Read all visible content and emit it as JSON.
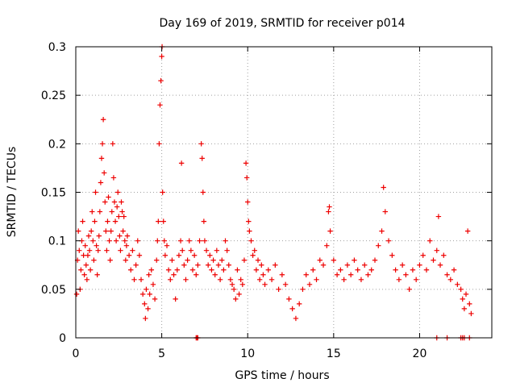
{
  "chart_data": {
    "type": "scatter",
    "title": "Day 169 of 2019, SRMTID for receiver p014",
    "xlabel": "GPS time / hours",
    "ylabel": "SRMTID / TECUs",
    "xlim": [
      0,
      24.2
    ],
    "ylim": [
      0,
      0.3
    ],
    "x_ticks": [
      0,
      5,
      10,
      15,
      20
    ],
    "y_ticks": [
      0,
      0.05,
      0.1,
      0.15,
      0.2,
      0.25,
      0.3
    ],
    "x_tick_labels": [
      "0",
      "5",
      "10",
      "15",
      "20"
    ],
    "y_tick_labels": [
      "0",
      "0.05",
      "0.1",
      "0.15",
      "0.2",
      "0.25",
      "0.3"
    ],
    "grid": true,
    "legend": "none",
    "marker": "plus",
    "series": [
      {
        "name": "SRMTID",
        "color": "#ee0000",
        "points": [
          [
            0.05,
            0.045
          ],
          [
            0.1,
            0.08
          ],
          [
            0.15,
            0.11
          ],
          [
            0.2,
            0.09
          ],
          [
            0.25,
            0.05
          ],
          [
            0.3,
            0.07
          ],
          [
            0.35,
            0.1
          ],
          [
            0.4,
            0.12
          ],
          [
            0.45,
            0.085
          ],
          [
            0.5,
            0.065
          ],
          [
            0.55,
            0.095
          ],
          [
            0.6,
            0.075
          ],
          [
            0.65,
            0.06
          ],
          [
            0.7,
            0.085
          ],
          [
            0.75,
            0.105
          ],
          [
            0.8,
            0.09
          ],
          [
            0.85,
            0.07
          ],
          [
            0.9,
            0.11
          ],
          [
            0.95,
            0.13
          ],
          [
            1.0,
            0.1
          ],
          [
            1.05,
            0.08
          ],
          [
            1.1,
            0.12
          ],
          [
            1.15,
            0.15
          ],
          [
            1.2,
            0.095
          ],
          [
            1.25,
            0.065
          ],
          [
            1.3,
            0.09
          ],
          [
            1.35,
            0.105
          ],
          [
            1.4,
            0.13
          ],
          [
            1.45,
            0.16
          ],
          [
            1.5,
            0.185
          ],
          [
            1.55,
            0.2
          ],
          [
            1.6,
            0.225
          ],
          [
            1.65,
            0.17
          ],
          [
            1.7,
            0.14
          ],
          [
            1.75,
            0.11
          ],
          [
            1.8,
            0.09
          ],
          [
            1.85,
            0.12
          ],
          [
            1.9,
            0.145
          ],
          [
            1.95,
            0.1
          ],
          [
            2.0,
            0.08
          ],
          [
            2.05,
            0.11
          ],
          [
            2.1,
            0.13
          ],
          [
            2.15,
            0.2
          ],
          [
            2.2,
            0.165
          ],
          [
            2.25,
            0.14
          ],
          [
            2.3,
            0.12
          ],
          [
            2.35,
            0.1
          ],
          [
            2.4,
            0.135
          ],
          [
            2.45,
            0.15
          ],
          [
            2.5,
            0.125
          ],
          [
            2.55,
            0.105
          ],
          [
            2.6,
            0.09
          ],
          [
            2.65,
            0.14
          ],
          [
            2.7,
            0.13
          ],
          [
            2.75,
            0.11
          ],
          [
            2.8,
            0.125
          ],
          [
            2.85,
            0.1
          ],
          [
            2.9,
            0.08
          ],
          [
            2.95,
            0.095
          ],
          [
            3.0,
            0.105
          ],
          [
            3.1,
            0.085
          ],
          [
            3.2,
            0.07
          ],
          [
            3.3,
            0.09
          ],
          [
            3.4,
            0.06
          ],
          [
            3.5,
            0.075
          ],
          [
            3.6,
            0.1
          ],
          [
            3.7,
            0.085
          ],
          [
            3.8,
            0.06
          ],
          [
            3.9,
            0.045
          ],
          [
            4.0,
            0.035
          ],
          [
            4.05,
            0.02
          ],
          [
            4.1,
            0.05
          ],
          [
            4.2,
            0.03
          ],
          [
            4.25,
            0.065
          ],
          [
            4.3,
            0.045
          ],
          [
            4.4,
            0.07
          ],
          [
            4.5,
            0.055
          ],
          [
            4.6,
            0.04
          ],
          [
            4.7,
            0.08
          ],
          [
            4.75,
            0.1
          ],
          [
            4.8,
            0.12
          ],
          [
            4.85,
            0.2
          ],
          [
            4.9,
            0.24
          ],
          [
            4.95,
            0.265
          ],
          [
            5.0,
            0.29
          ],
          [
            5.02,
            0.3
          ],
          [
            5.05,
            0.15
          ],
          [
            5.1,
            0.12
          ],
          [
            5.15,
            0.1
          ],
          [
            5.2,
            0.085
          ],
          [
            5.3,
            0.095
          ],
          [
            5.4,
            0.07
          ],
          [
            5.5,
            0.06
          ],
          [
            5.6,
            0.08
          ],
          [
            5.7,
            0.065
          ],
          [
            5.8,
            0.04
          ],
          [
            5.9,
            0.07
          ],
          [
            6.0,
            0.085
          ],
          [
            6.1,
            0.1
          ],
          [
            6.15,
            0.18
          ],
          [
            6.2,
            0.09
          ],
          [
            6.3,
            0.075
          ],
          [
            6.4,
            0.06
          ],
          [
            6.5,
            0.08
          ],
          [
            6.6,
            0.1
          ],
          [
            6.7,
            0.09
          ],
          [
            6.8,
            0.07
          ],
          [
            6.9,
            0.085
          ],
          [
            7.0,
            0.065
          ],
          [
            7.1,
            0.075
          ],
          [
            7.2,
            0.1
          ],
          [
            7.3,
            0.2
          ],
          [
            7.35,
            0.185
          ],
          [
            7.4,
            0.15
          ],
          [
            7.45,
            0.12
          ],
          [
            7.5,
            0.1
          ],
          [
            7.6,
            0.09
          ],
          [
            7.7,
            0.075
          ],
          [
            7.8,
            0.085
          ],
          [
            7.9,
            0.07
          ],
          [
            8.0,
            0.08
          ],
          [
            8.1,
            0.065
          ],
          [
            8.2,
            0.09
          ],
          [
            8.3,
            0.075
          ],
          [
            8.4,
            0.06
          ],
          [
            8.5,
            0.08
          ],
          [
            8.6,
            0.07
          ],
          [
            8.7,
            0.1
          ],
          [
            8.8,
            0.09
          ],
          [
            8.9,
            0.075
          ],
          [
            9.0,
            0.06
          ],
          [
            9.1,
            0.055
          ],
          [
            9.2,
            0.05
          ],
          [
            9.3,
            0.04
          ],
          [
            9.4,
            0.07
          ],
          [
            9.5,
            0.045
          ],
          [
            9.6,
            0.06
          ],
          [
            9.7,
            0.055
          ],
          [
            9.8,
            0.08
          ],
          [
            9.9,
            0.18
          ],
          [
            9.95,
            0.165
          ],
          [
            10.0,
            0.14
          ],
          [
            10.05,
            0.12
          ],
          [
            10.1,
            0.11
          ],
          [
            10.2,
            0.1
          ],
          [
            10.3,
            0.085
          ],
          [
            10.4,
            0.09
          ],
          [
            10.5,
            0.07
          ],
          [
            10.6,
            0.08
          ],
          [
            10.7,
            0.06
          ],
          [
            10.8,
            0.075
          ],
          [
            10.9,
            0.065
          ],
          [
            11.0,
            0.055
          ],
          [
            11.2,
            0.07
          ],
          [
            11.4,
            0.06
          ],
          [
            11.6,
            0.075
          ],
          [
            11.8,
            0.05
          ],
          [
            12.0,
            0.065
          ],
          [
            12.2,
            0.055
          ],
          [
            12.4,
            0.04
          ],
          [
            12.6,
            0.03
          ],
          [
            12.8,
            0.02
          ],
          [
            13.0,
            0.035
          ],
          [
            13.2,
            0.05
          ],
          [
            13.4,
            0.065
          ],
          [
            13.6,
            0.055
          ],
          [
            13.8,
            0.07
          ],
          [
            14.0,
            0.06
          ],
          [
            14.2,
            0.08
          ],
          [
            14.4,
            0.075
          ],
          [
            14.6,
            0.095
          ],
          [
            14.7,
            0.13
          ],
          [
            14.75,
            0.135
          ],
          [
            14.8,
            0.11
          ],
          [
            15.0,
            0.08
          ],
          [
            15.2,
            0.065
          ],
          [
            15.4,
            0.07
          ],
          [
            15.6,
            0.06
          ],
          [
            15.8,
            0.075
          ],
          [
            16.0,
            0.065
          ],
          [
            16.2,
            0.08
          ],
          [
            16.4,
            0.07
          ],
          [
            16.6,
            0.06
          ],
          [
            16.8,
            0.075
          ],
          [
            17.0,
            0.065
          ],
          [
            17.2,
            0.07
          ],
          [
            17.4,
            0.08
          ],
          [
            17.6,
            0.095
          ],
          [
            17.8,
            0.11
          ],
          [
            17.9,
            0.155
          ],
          [
            18.0,
            0.13
          ],
          [
            18.2,
            0.1
          ],
          [
            18.4,
            0.085
          ],
          [
            18.6,
            0.07
          ],
          [
            18.8,
            0.06
          ],
          [
            19.0,
            0.075
          ],
          [
            19.2,
            0.065
          ],
          [
            19.4,
            0.05
          ],
          [
            19.6,
            0.07
          ],
          [
            19.8,
            0.06
          ],
          [
            20.0,
            0.075
          ],
          [
            20.2,
            0.085
          ],
          [
            20.4,
            0.07
          ],
          [
            20.6,
            0.1
          ],
          [
            20.8,
            0.08
          ],
          [
            21.0,
            0.09
          ],
          [
            21.1,
            0.125
          ],
          [
            21.2,
            0.075
          ],
          [
            21.4,
            0.085
          ],
          [
            21.6,
            0.065
          ],
          [
            21.8,
            0.06
          ],
          [
            22.0,
            0.07
          ],
          [
            22.2,
            0.055
          ],
          [
            22.4,
            0.05
          ],
          [
            22.5,
            0.04
          ],
          [
            22.6,
            0.03
          ],
          [
            22.7,
            0.045
          ],
          [
            22.8,
            0.11
          ],
          [
            22.9,
            0.035
          ],
          [
            23.0,
            0.025
          ]
        ]
      }
    ],
    "zero_points_x": [
      7.0,
      7.05,
      7.1,
      21.0,
      21.6,
      22.4,
      22.5,
      22.6,
      22.9
    ]
  }
}
